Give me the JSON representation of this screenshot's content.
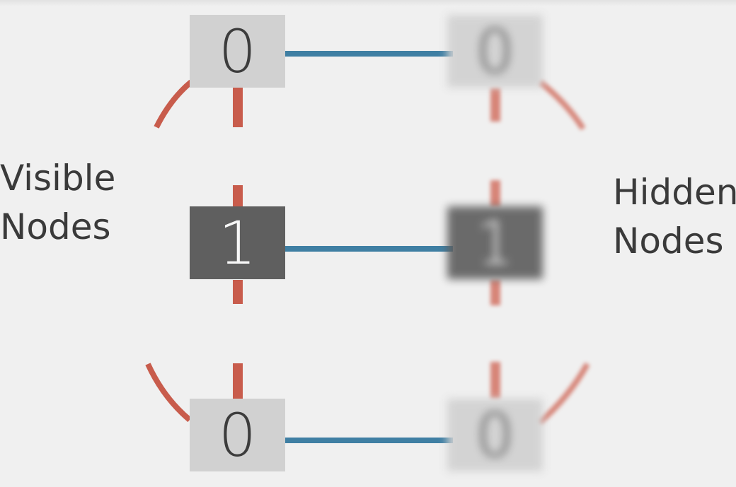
{
  "labels": {
    "visible_line1": "Visible",
    "visible_line2": "Nodes",
    "hidden_line1": "Hidden",
    "hidden_line2": "Nodes"
  },
  "visible_nodes": [
    {
      "value": "0",
      "state": "off"
    },
    {
      "value": "1",
      "state": "on"
    },
    {
      "value": "0",
      "state": "off"
    }
  ],
  "hidden_nodes": [
    {
      "value": "0",
      "state": "off"
    },
    {
      "value": "1",
      "state": "on"
    },
    {
      "value": "0",
      "state": "off"
    }
  ],
  "colors": {
    "background": "#f0f0f0",
    "node_off": "#d1d1d1",
    "node_on": "#5f5f5f",
    "weight_edge": "#3f7fa3",
    "lateral_edge": "#c85c4c",
    "text": "#3a3a3a"
  }
}
